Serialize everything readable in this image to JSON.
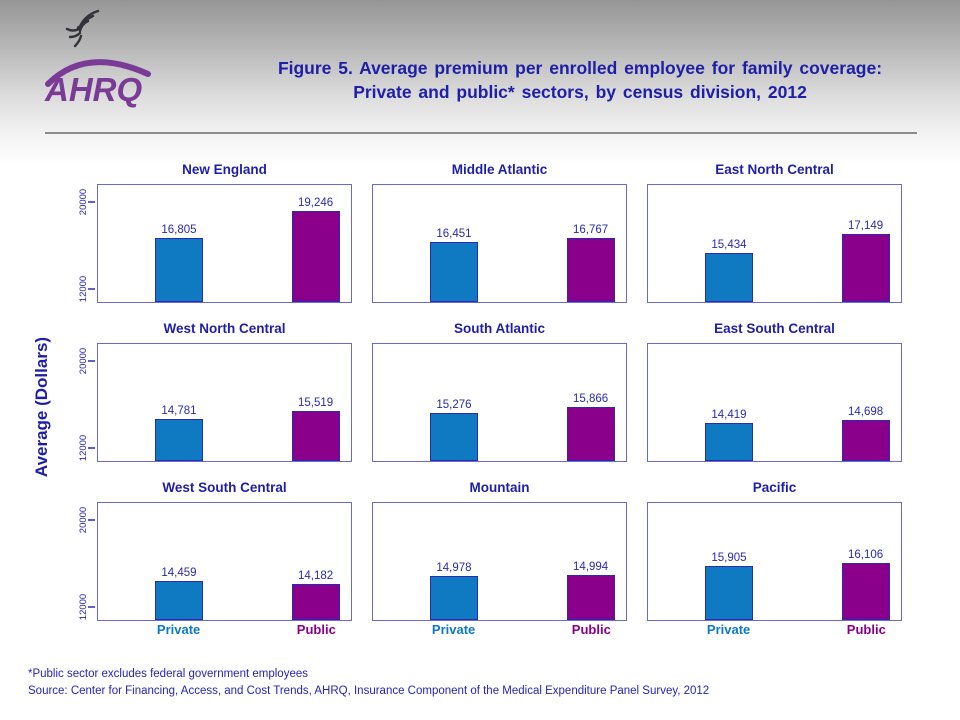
{
  "header": {
    "logo": {
      "eagle_icon": "hhs-eagle-icon",
      "wordmark": "AHRQ",
      "logo_color": "#7a3b96"
    },
    "title_line1": "Figure 5. Average premium per enrolled employee for family coverage:",
    "title_line2": "Private and public* sectors, by census division, 2012"
  },
  "chart_data": {
    "type": "bar",
    "title": "Figure 5. Average premium per enrolled employee for family coverage: Private and public* sectors, by census division, 2012",
    "xlabel": "",
    "ylabel": "Average (Dollars)",
    "categories": [
      "Private",
      "Public"
    ],
    "yticks": [
      12000,
      20000
    ],
    "ytick_labels": [
      "12000",
      "20000"
    ],
    "ylim": [
      10900,
      21650
    ],
    "grid": "off",
    "legend": "none",
    "layout": "3x3 small multiples by census division",
    "panels": [
      {
        "title": "New England",
        "values": [
          16805,
          19246
        ],
        "labels": [
          "16,805",
          "19,246"
        ]
      },
      {
        "title": "Middle Atlantic",
        "values": [
          16451,
          16767
        ],
        "labels": [
          "16,451",
          "16,767"
        ]
      },
      {
        "title": "East North Central",
        "values": [
          15434,
          17149
        ],
        "labels": [
          "15,434",
          "17,149"
        ]
      },
      {
        "title": "West North Central",
        "values": [
          14781,
          15519
        ],
        "labels": [
          "14,781",
          "15,519"
        ]
      },
      {
        "title": "South Atlantic",
        "values": [
          15276,
          15866
        ],
        "labels": [
          "15,276",
          "15,866"
        ]
      },
      {
        "title": "East South Central",
        "values": [
          14419,
          14698
        ],
        "labels": [
          "14,419",
          "14,698"
        ]
      },
      {
        "title": "West South Central",
        "values": [
          14459,
          14182
        ],
        "labels": [
          "14,459",
          "14,182"
        ]
      },
      {
        "title": "Mountain",
        "values": [
          14978,
          14994
        ],
        "labels": [
          "14,978",
          "14,994"
        ]
      },
      {
        "title": "Pacific",
        "values": [
          15905,
          16106
        ],
        "labels": [
          "15,905",
          "16,106"
        ]
      }
    ],
    "colors": {
      "private": "#0f7ac1",
      "public": "#8a008a",
      "axis": "#6969cf",
      "bar_border": "#2a2ab4",
      "title_text": "#1e1ea8",
      "value_text": "#2a2aae"
    }
  },
  "footer": {
    "note": "*Public sector excludes federal government employees",
    "source": "Source: Center for Financing, Access, and Cost Trends, AHRQ, Insurance Component of the Medical Expenditure Panel Survey, 2012"
  }
}
